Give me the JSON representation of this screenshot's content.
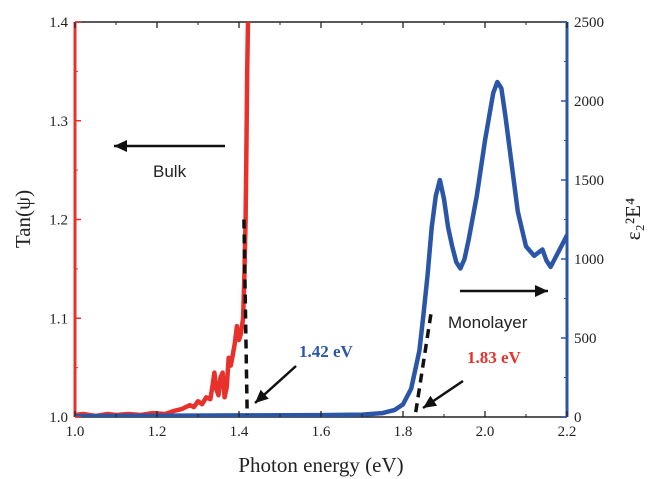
{
  "chart_data": {
    "type": "line",
    "xlabel": "Photon energy (eV)",
    "ylabel_left": "Tan(ψ)",
    "ylabel_right": "ε₂²E⁴",
    "xlim": [
      1.0,
      2.2
    ],
    "ylim_left": [
      1.0,
      1.4
    ],
    "ylim_right": [
      0,
      2500
    ],
    "x_ticks": [
      "1.0",
      "1.2",
      "1.4",
      "1.6",
      "1.8",
      "2.0",
      "2.2"
    ],
    "y_left_ticks": [
      "1.0",
      "1.1",
      "1.2",
      "1.3",
      "1.4"
    ],
    "y_right_ticks": [
      "0",
      "500",
      "1000",
      "1500",
      "2000",
      "2500"
    ],
    "grid": false,
    "colors": {
      "bulk": "#e8312a",
      "monolayer": "#2b56a8",
      "axis_left": "#e8312a",
      "axis_right": "#2b56a8",
      "frame": "#222222"
    },
    "series": [
      {
        "name": "Bulk",
        "axis": "left",
        "x": [
          1.0,
          1.02,
          1.05,
          1.08,
          1.1,
          1.13,
          1.16,
          1.19,
          1.22,
          1.24,
          1.26,
          1.28,
          1.29,
          1.3,
          1.31,
          1.32,
          1.33,
          1.335,
          1.34,
          1.345,
          1.35,
          1.355,
          1.36,
          1.365,
          1.37,
          1.375,
          1.38,
          1.385,
          1.39,
          1.395,
          1.4,
          1.405,
          1.41,
          1.413,
          1.416,
          1.418,
          1.42,
          1.422
        ],
        "y": [
          1.002,
          1.003,
          1.001,
          1.003,
          1.002,
          1.003,
          1.002,
          1.004,
          1.003,
          1.006,
          1.008,
          1.012,
          1.01,
          1.016,
          1.013,
          1.02,
          1.018,
          1.03,
          1.045,
          1.028,
          1.022,
          1.04,
          1.045,
          1.02,
          1.03,
          1.06,
          1.052,
          1.063,
          1.075,
          1.092,
          1.078,
          1.085,
          1.1,
          1.14,
          1.2,
          1.27,
          1.35,
          1.4
        ]
      },
      {
        "name": "Monolayer",
        "axis": "right",
        "x": [
          1.0,
          1.2,
          1.4,
          1.6,
          1.7,
          1.75,
          1.78,
          1.8,
          1.82,
          1.84,
          1.85,
          1.86,
          1.87,
          1.88,
          1.89,
          1.9,
          1.91,
          1.92,
          1.93,
          1.94,
          1.95,
          1.96,
          1.98,
          2.0,
          2.02,
          2.03,
          2.035,
          2.04,
          2.05,
          2.06,
          2.07,
          2.08,
          2.1,
          2.12,
          2.14,
          2.15,
          2.16,
          2.17,
          2.18,
          2.19,
          2.2
        ],
        "y": [
          5,
          8,
          10,
          12,
          15,
          25,
          45,
          80,
          180,
          420,
          650,
          900,
          1200,
          1400,
          1500,
          1380,
          1200,
          1080,
          980,
          940,
          1000,
          1120,
          1400,
          1750,
          2050,
          2120,
          2100,
          2080,
          1900,
          1700,
          1500,
          1300,
          1080,
          1020,
          1060,
          990,
          950,
          1000,
          1050,
          1100,
          1150
        ]
      }
    ],
    "annotations": {
      "bulk_label": "Bulk",
      "monolayer_label": "Monolayer",
      "edge_bulk": "1.42 eV",
      "edge_mono": "1.83 eV"
    }
  }
}
